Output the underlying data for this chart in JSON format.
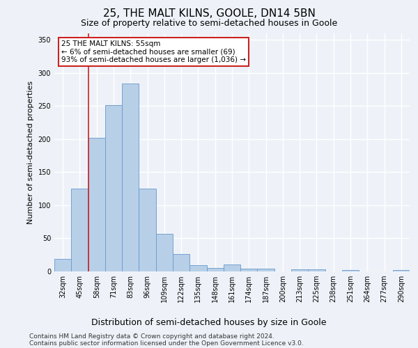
{
  "title": "25, THE MALT KILNS, GOOLE, DN14 5BN",
  "subtitle": "Size of property relative to semi-detached houses in Goole",
  "xlabel": "Distribution of semi-detached houses by size in Goole",
  "ylabel": "Number of semi-detached properties",
  "categories": [
    "32sqm",
    "45sqm",
    "58sqm",
    "71sqm",
    "83sqm",
    "96sqm",
    "109sqm",
    "122sqm",
    "135sqm",
    "148sqm",
    "161sqm",
    "174sqm",
    "187sqm",
    "200sqm",
    "213sqm",
    "225sqm",
    "238sqm",
    "251sqm",
    "264sqm",
    "277sqm",
    "290sqm"
  ],
  "values": [
    19,
    125,
    202,
    251,
    284,
    125,
    57,
    26,
    9,
    5,
    10,
    4,
    4,
    0,
    3,
    3,
    0,
    2,
    0,
    0,
    2
  ],
  "bar_color": "#b8cfe8",
  "bar_edge_color": "#6699cc",
  "vline_x_index": 2,
  "vline_color": "#cc2222",
  "annotation_text": "25 THE MALT KILNS: 55sqm\n← 6% of semi-detached houses are smaller (69)\n93% of semi-detached houses are larger (1,036) →",
  "annotation_box_color": "#ffffff",
  "annotation_box_edge": "#cc2222",
  "ylim": [
    0,
    360
  ],
  "yticks": [
    0,
    50,
    100,
    150,
    200,
    250,
    300,
    350
  ],
  "footer_line1": "Contains HM Land Registry data © Crown copyright and database right 2024.",
  "footer_line2": "Contains public sector information licensed under the Open Government Licence v3.0.",
  "background_color": "#eef2f8",
  "grid_color": "#ffffff",
  "title_fontsize": 11,
  "subtitle_fontsize": 9,
  "ylabel_fontsize": 8,
  "xlabel_fontsize": 9,
  "tick_fontsize": 7,
  "annotation_fontsize": 7.5,
  "footer_fontsize": 6.5
}
